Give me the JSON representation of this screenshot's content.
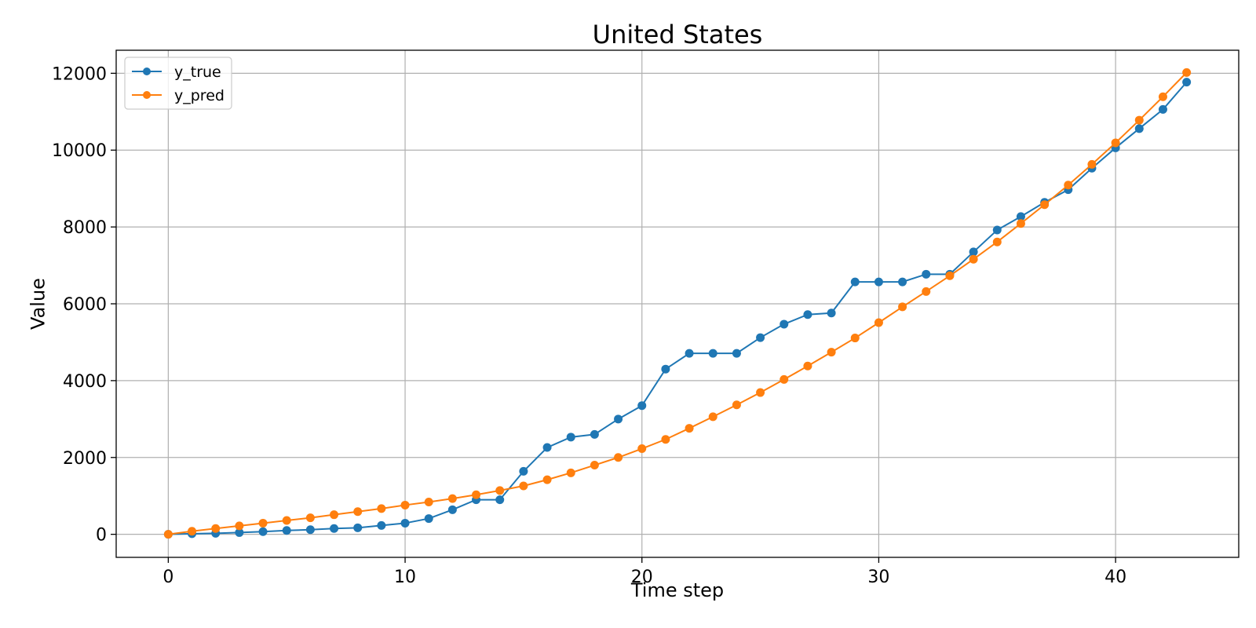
{
  "chart_data": {
    "type": "line",
    "title": "United States",
    "xlabel": "Time step",
    "ylabel": "Value",
    "xlim": [
      -2.2,
      45.2
    ],
    "ylim": [
      -600,
      12600
    ],
    "x_ticks": [
      0,
      10,
      20,
      30,
      40
    ],
    "y_ticks": [
      0,
      2000,
      4000,
      6000,
      8000,
      10000,
      12000
    ],
    "grid": true,
    "legend_position": "top-left",
    "x": [
      0,
      1,
      2,
      3,
      4,
      5,
      6,
      7,
      8,
      9,
      10,
      11,
      12,
      13,
      14,
      15,
      16,
      17,
      18,
      19,
      20,
      21,
      22,
      23,
      24,
      25,
      26,
      27,
      28,
      29,
      30,
      31,
      32,
      33,
      34,
      35,
      36,
      37,
      38,
      39,
      40,
      41,
      42,
      43
    ],
    "series": [
      {
        "name": "y_true",
        "color": "#1f77b4",
        "values": [
          0,
          15,
          25,
          45,
          70,
          100,
          120,
          150,
          170,
          230,
          290,
          410,
          640,
          900,
          900,
          1640,
          2260,
          2530,
          2600,
          3000,
          3350,
          4300,
          4710,
          4710,
          4710,
          5120,
          5470,
          5720,
          5760,
          6570,
          6570,
          6570,
          6770,
          6770,
          7350,
          7920,
          8270,
          8640,
          8970,
          9530,
          10060,
          10560,
          11060,
          11770
        ]
      },
      {
        "name": "y_pred",
        "color": "#ff7f0e",
        "values": [
          0,
          80,
          150,
          220,
          290,
          360,
          430,
          510,
          590,
          670,
          760,
          840,
          930,
          1030,
          1140,
          1260,
          1420,
          1600,
          1800,
          2000,
          2230,
          2470,
          2760,
          3060,
          3370,
          3690,
          4030,
          4380,
          4740,
          5110,
          5510,
          5920,
          6320,
          6730,
          7160,
          7610,
          8090,
          8580,
          9090,
          9630,
          10190,
          10780,
          11390,
          12020
        ]
      }
    ]
  }
}
